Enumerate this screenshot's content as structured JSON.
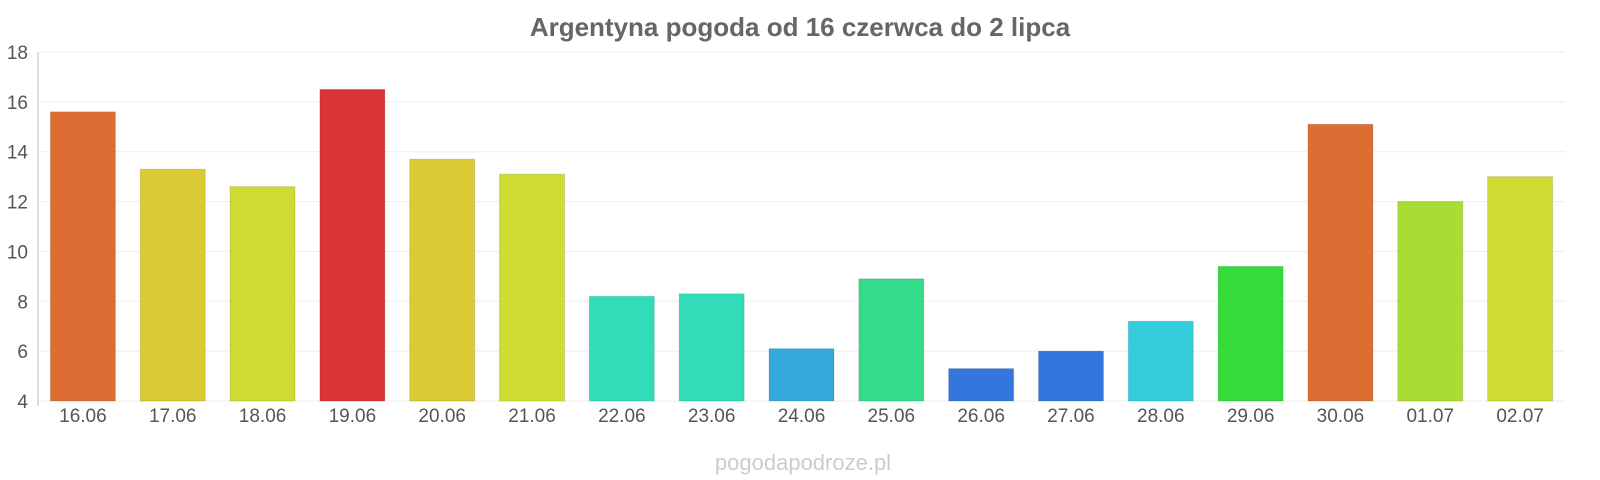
{
  "chart_data": {
    "type": "bar",
    "title": "Argentyna pogoda od 16 czerwca do 2 lipca",
    "xlabel": "",
    "ylabel": "",
    "ylim": [
      4,
      18
    ],
    "yticks": [
      "4",
      "6",
      "8",
      "10",
      "12",
      "14",
      "16",
      "18"
    ],
    "categories": [
      "16.06",
      "17.06",
      "18.06",
      "19.06",
      "20.06",
      "21.06",
      "22.06",
      "23.06",
      "24.06",
      "25.06",
      "26.06",
      "27.06",
      "28.06",
      "29.06",
      "30.06",
      "01.07",
      "02.07"
    ],
    "values": [
      15.6,
      13.3,
      12.6,
      16.5,
      13.7,
      13.1,
      8.2,
      8.3,
      6.1,
      8.9,
      5.3,
      6.0,
      7.2,
      9.4,
      15.1,
      12.0,
      13.0
    ],
    "colors": [
      "#dd6e33",
      "#dbca33",
      "#cfdb33",
      "#dc3535",
      "#dbca33",
      "#cfdd33",
      "#33dcb9",
      "#33dcb9",
      "#33a8dc",
      "#33dc8b",
      "#3377dc",
      "#3377dc",
      "#33cddc",
      "#33dc3a",
      "#dd6e33",
      "#aadd33",
      "#cfdb33"
    ],
    "grid": true,
    "legend": "none"
  },
  "watermark": "pogodapodroze.pl"
}
